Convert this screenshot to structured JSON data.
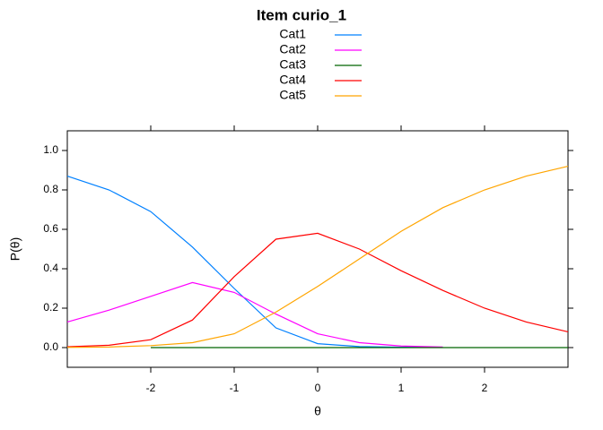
{
  "chart_data": {
    "type": "line",
    "title": "Item curio_1",
    "xlabel": "θ",
    "ylabel": "P(θ)",
    "x": [
      -3,
      -2.5,
      -2,
      -1.5,
      -1,
      -0.5,
      0,
      0.5,
      1,
      1.5,
      2,
      2.5,
      3
    ],
    "series": [
      {
        "name": "Cat1",
        "color": "#0080ff",
        "values": [
          0.87,
          0.8,
          0.69,
          0.51,
          0.3,
          0.1,
          0.02,
          0.005,
          0.002,
          0.001,
          null,
          null,
          null
        ]
      },
      {
        "name": "Cat2",
        "color": "#ff00ff",
        "values": [
          0.13,
          0.19,
          0.26,
          0.33,
          0.28,
          0.17,
          0.07,
          0.025,
          0.008,
          0.003,
          null,
          null,
          null
        ]
      },
      {
        "name": "Cat3",
        "color": "#006400",
        "values": [
          null,
          null,
          0,
          0,
          0,
          0,
          0,
          0,
          0,
          0,
          0,
          0,
          0
        ]
      },
      {
        "name": "Cat4",
        "color": "#ff0000",
        "values": [
          0.004,
          0.012,
          0.04,
          0.14,
          0.36,
          0.55,
          0.58,
          0.5,
          0.39,
          0.29,
          0.2,
          0.13,
          0.08
        ]
      },
      {
        "name": "Cat5",
        "color": "#ffa500",
        "values": [
          0.001,
          0.003,
          0.01,
          0.025,
          0.07,
          0.18,
          0.31,
          0.45,
          0.59,
          0.71,
          0.8,
          0.87,
          0.92
        ]
      }
    ],
    "xlim": [
      -3,
      3
    ],
    "xticks": [
      -2,
      -1,
      0,
      1,
      2
    ],
    "ylim": [
      -0.1,
      1.1
    ],
    "yticks": [
      {
        "value": 0,
        "label": "0.0"
      },
      0.2,
      0.4,
      0.6,
      0.8,
      {
        "value": 1,
        "label": "1.0"
      }
    ]
  }
}
